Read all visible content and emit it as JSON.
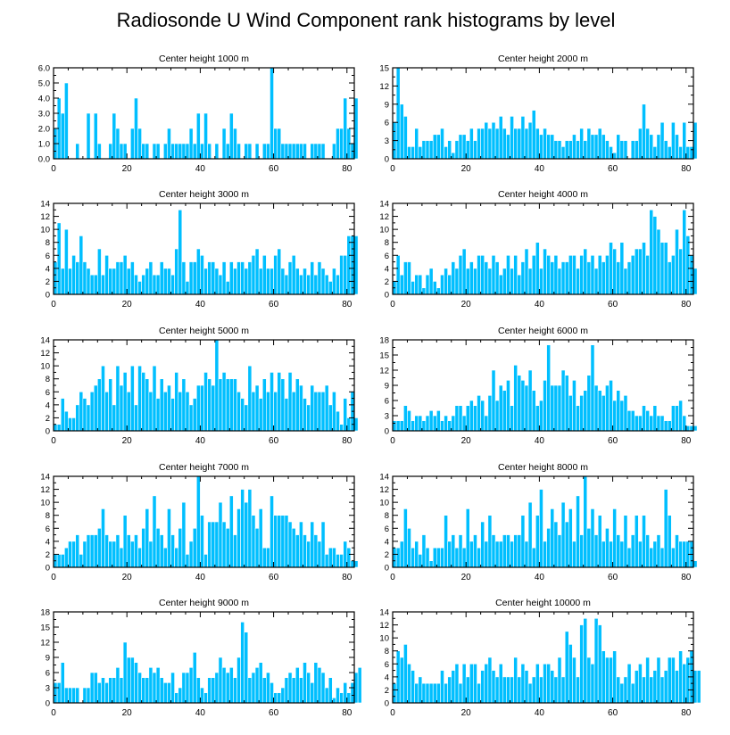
{
  "title": "Radiosonde U Wind Component rank histograms by level",
  "colors": {
    "bar": "#00bfff",
    "bar_edge": "#ffffff",
    "axis": "#000000"
  },
  "chart_data": [
    {
      "type": "bar",
      "title": "Center height 1000 m",
      "xlabel": "",
      "ylabel": "",
      "xlim": [
        0,
        82
      ],
      "ylim": [
        0,
        6
      ],
      "xticks": [
        0,
        20,
        40,
        60,
        80
      ],
      "yticks": [
        0,
        1,
        2,
        3,
        4,
        5,
        6
      ],
      "ytick_labels": [
        "0.0",
        "1.0",
        "2.0",
        "3.0",
        "4.0",
        "5.0",
        "6.0"
      ],
      "values": [
        2,
        4,
        3,
        5,
        0,
        0,
        1,
        0,
        0,
        3,
        0,
        3,
        1,
        0,
        0,
        1,
        3,
        2,
        1,
        1,
        0,
        2,
        4,
        2,
        1,
        1,
        0,
        1,
        1,
        0,
        1,
        2,
        1,
        1,
        1,
        1,
        1,
        2,
        1,
        3,
        1,
        3,
        1,
        0,
        1,
        0,
        2,
        1,
        3,
        2,
        1,
        0,
        1,
        1,
        0,
        1,
        0,
        1,
        1,
        6,
        2,
        2,
        1,
        1,
        1,
        1,
        1,
        1,
        1,
        0,
        1,
        1,
        1,
        1,
        0,
        0,
        1,
        2,
        2,
        4,
        2,
        1,
        4
      ]
    },
    {
      "type": "bar",
      "title": "Center height 2000 m",
      "xlabel": "",
      "ylabel": "",
      "xlim": [
        0,
        82
      ],
      "ylim": [
        0,
        15
      ],
      "xticks": [
        0,
        20,
        40,
        60,
        80
      ],
      "yticks": [
        0,
        3,
        6,
        9,
        12,
        15
      ],
      "ytick_labels": [
        "0",
        "3",
        "6",
        "9",
        "12",
        "15"
      ],
      "values": [
        6,
        15,
        9,
        7,
        2,
        2,
        5,
        2,
        3,
        3,
        3,
        4,
        4,
        5,
        2,
        3,
        1,
        3,
        4,
        4,
        3,
        5,
        3,
        5,
        5,
        6,
        5,
        6,
        5,
        7,
        5,
        4,
        7,
        5,
        5,
        7,
        5,
        6,
        8,
        5,
        4,
        5,
        4,
        4,
        3,
        3,
        2,
        3,
        3,
        4,
        3,
        5,
        3,
        5,
        4,
        4,
        5,
        4,
        3,
        2,
        1,
        4,
        3,
        3,
        0,
        3,
        3,
        5,
        9,
        5,
        4,
        2,
        4,
        6,
        3,
        2,
        6,
        4,
        2,
        6,
        2,
        2,
        6
      ]
    },
    {
      "type": "bar",
      "title": "Center height 3000 m",
      "xlabel": "",
      "ylabel": "",
      "xlim": [
        0,
        82
      ],
      "ylim": [
        0,
        14
      ],
      "xticks": [
        0,
        20,
        40,
        60,
        80
      ],
      "yticks": [
        0,
        2,
        4,
        6,
        8,
        10,
        12,
        14
      ],
      "ytick_labels": [
        "0",
        "2",
        "4",
        "6",
        "8",
        "10",
        "12",
        "14"
      ],
      "values": [
        5,
        11,
        4,
        10,
        4,
        6,
        5,
        9,
        5,
        4,
        3,
        3,
        7,
        3,
        6,
        4,
        4,
        5,
        5,
        6,
        4,
        5,
        3,
        2,
        3,
        4,
        5,
        3,
        3,
        5,
        4,
        4,
        3,
        7,
        13,
        5,
        2,
        5,
        5,
        7,
        6,
        4,
        5,
        5,
        4,
        3,
        5,
        2,
        5,
        4,
        5,
        5,
        4,
        5,
        6,
        7,
        4,
        6,
        4,
        4,
        6,
        7,
        4,
        3,
        5,
        6,
        4,
        3,
        4,
        3,
        5,
        3,
        5,
        4,
        3,
        2,
        4,
        3,
        6,
        6,
        9,
        9,
        9
      ]
    },
    {
      "type": "bar",
      "title": "Center height 4000 m",
      "xlabel": "",
      "ylabel": "",
      "xlim": [
        0,
        82
      ],
      "ylim": [
        0,
        14
      ],
      "xticks": [
        0,
        20,
        40,
        60,
        80
      ],
      "yticks": [
        0,
        2,
        4,
        6,
        8,
        10,
        12,
        14
      ],
      "ytick_labels": [
        "0",
        "2",
        "4",
        "6",
        "8",
        "10",
        "12",
        "14"
      ],
      "values": [
        2,
        6,
        3,
        5,
        5,
        2,
        3,
        3,
        1,
        3,
        4,
        2,
        1,
        3,
        4,
        3,
        5,
        4,
        6,
        7,
        4,
        5,
        4,
        6,
        6,
        5,
        4,
        6,
        5,
        3,
        4,
        6,
        4,
        6,
        3,
        5,
        7,
        4,
        6,
        8,
        4,
        7,
        6,
        5,
        6,
        4,
        5,
        5,
        6,
        6,
        4,
        6,
        7,
        5,
        6,
        4,
        6,
        5,
        6,
        8,
        7,
        5,
        8,
        4,
        5,
        6,
        7,
        7,
        8,
        6,
        13,
        12,
        10,
        8,
        8,
        5,
        6,
        10,
        7,
        13,
        9,
        6,
        4
      ]
    },
    {
      "type": "bar",
      "title": "Center height 5000 m",
      "xlabel": "",
      "ylabel": "",
      "xlim": [
        0,
        82
      ],
      "ylim": [
        0,
        14
      ],
      "xticks": [
        0,
        20,
        40,
        60,
        80
      ],
      "yticks": [
        0,
        2,
        4,
        6,
        8,
        10,
        12,
        14
      ],
      "ytick_labels": [
        "0",
        "2",
        "4",
        "6",
        "8",
        "10",
        "12",
        "14"
      ],
      "values": [
        1,
        1,
        5,
        3,
        2,
        2,
        4,
        6,
        5,
        4,
        6,
        7,
        8,
        10,
        6,
        8,
        4,
        10,
        7,
        9,
        6,
        10,
        4,
        10,
        9,
        8,
        6,
        10,
        5,
        8,
        6,
        7,
        5,
        9,
        6,
        8,
        6,
        4,
        5,
        7,
        7,
        9,
        8,
        7,
        14,
        8,
        9,
        8,
        8,
        8,
        6,
        5,
        4,
        10,
        6,
        7,
        5,
        8,
        6,
        9,
        6,
        9,
        8,
        5,
        9,
        6,
        8,
        7,
        5,
        4,
        7,
        6,
        6,
        6,
        7,
        4,
        6,
        3,
        1,
        5,
        2,
        6,
        2
      ]
    },
    {
      "type": "bar",
      "title": "Center height 6000 m",
      "xlabel": "",
      "ylabel": "",
      "xlim": [
        0,
        82
      ],
      "ylim": [
        0,
        18
      ],
      "xticks": [
        0,
        20,
        40,
        60,
        80
      ],
      "yticks": [
        0,
        3,
        6,
        9,
        12,
        15,
        18
      ],
      "ytick_labels": [
        "0",
        "3",
        "6",
        "9",
        "12",
        "15",
        "18"
      ],
      "values": [
        2,
        2,
        2,
        5,
        4,
        2,
        3,
        3,
        2,
        3,
        4,
        3,
        4,
        2,
        3,
        2,
        3,
        5,
        5,
        3,
        5,
        6,
        5,
        7,
        6,
        3,
        7,
        12,
        6,
        9,
        8,
        10,
        5,
        13,
        11,
        10,
        9,
        12,
        8,
        5,
        6,
        10,
        17,
        9,
        9,
        9,
        12,
        11,
        7,
        10,
        5,
        7,
        8,
        11,
        17,
        9,
        8,
        7,
        9,
        10,
        6,
        8,
        6,
        7,
        4,
        4,
        3,
        3,
        5,
        4,
        3,
        5,
        3,
        3,
        2,
        2,
        5,
        5,
        6,
        3,
        1,
        1,
        1
      ]
    },
    {
      "type": "bar",
      "title": "Center height 7000 m",
      "xlabel": "",
      "ylabel": "",
      "xlim": [
        0,
        82
      ],
      "ylim": [
        0,
        14
      ],
      "xticks": [
        0,
        20,
        40,
        60,
        80
      ],
      "yticks": [
        0,
        2,
        4,
        6,
        8,
        10,
        12,
        14
      ],
      "ytick_labels": [
        "0",
        "2",
        "4",
        "6",
        "8",
        "10",
        "12",
        "14"
      ],
      "values": [
        2,
        2,
        2,
        3,
        4,
        4,
        5,
        2,
        4,
        5,
        5,
        5,
        6,
        9,
        5,
        4,
        4,
        5,
        3,
        8,
        5,
        4,
        5,
        3,
        6,
        9,
        4,
        11,
        6,
        5,
        3,
        9,
        5,
        3,
        6,
        10,
        2,
        4,
        6,
        14,
        8,
        2,
        7,
        7,
        7,
        10,
        7,
        6,
        11,
        5,
        9,
        12,
        10,
        12,
        8,
        6,
        9,
        3,
        3,
        11,
        8,
        8,
        8,
        8,
        7,
        6,
        5,
        7,
        5,
        4,
        7,
        5,
        4,
        7,
        2,
        3,
        3,
        2,
        2,
        4,
        3,
        1,
        1
      ]
    },
    {
      "type": "bar",
      "title": "Center height 8000 m",
      "xlabel": "",
      "ylabel": "",
      "xlim": [
        0,
        82
      ],
      "ylim": [
        0,
        14
      ],
      "xticks": [
        0,
        20,
        40,
        60,
        80
      ],
      "yticks": [
        0,
        2,
        4,
        6,
        8,
        10,
        12,
        14
      ],
      "ytick_labels": [
        "0",
        "2",
        "4",
        "6",
        "8",
        "10",
        "12",
        "14"
      ],
      "values": [
        3,
        3,
        4,
        9,
        6,
        3,
        4,
        2,
        5,
        3,
        1,
        3,
        3,
        3,
        8,
        4,
        5,
        3,
        5,
        3,
        9,
        4,
        5,
        3,
        7,
        4,
        8,
        5,
        4,
        4,
        5,
        5,
        4,
        5,
        5,
        8,
        4,
        10,
        3,
        8,
        12,
        4,
        6,
        9,
        7,
        5,
        10,
        7,
        9,
        4,
        11,
        5,
        14,
        6,
        9,
        5,
        8,
        4,
        6,
        4,
        9,
        5,
        4,
        8,
        3,
        5,
        8,
        4,
        8,
        5,
        3,
        4,
        5,
        3,
        12,
        8,
        3,
        5,
        4,
        4,
        4,
        4,
        1
      ]
    },
    {
      "type": "bar",
      "title": "Center height 9000 m",
      "xlabel": "",
      "ylabel": "",
      "xlim": [
        0,
        82
      ],
      "ylim": [
        0,
        18
      ],
      "xticks": [
        0,
        20,
        40,
        60,
        80
      ],
      "yticks": [
        0,
        3,
        6,
        9,
        12,
        15,
        18
      ],
      "ytick_labels": [
        "0",
        "3",
        "6",
        "9",
        "12",
        "15",
        "18"
      ],
      "values": [
        4,
        4,
        8,
        3,
        3,
        3,
        3,
        0,
        3,
        3,
        6,
        6,
        4,
        5,
        4,
        5,
        5,
        7,
        5,
        12,
        9,
        9,
        8,
        6,
        5,
        5,
        7,
        6,
        7,
        5,
        4,
        4,
        6,
        2,
        3,
        6,
        6,
        7,
        10,
        5,
        3,
        2,
        5,
        5,
        6,
        9,
        7,
        6,
        7,
        5,
        9,
        16,
        14,
        5,
        6,
        7,
        8,
        5,
        6,
        4,
        2,
        2,
        3,
        5,
        6,
        5,
        7,
        5,
        8,
        6,
        4,
        8,
        7,
        6,
        3,
        5,
        1,
        3,
        2,
        4,
        2,
        4,
        6,
        7
      ]
    },
    {
      "type": "bar",
      "title": "Center height 10000 m",
      "xlabel": "",
      "ylabel": "",
      "xlim": [
        0,
        82
      ],
      "ylim": [
        0,
        14
      ],
      "xticks": [
        0,
        20,
        40,
        60,
        80
      ],
      "yticks": [
        0,
        2,
        4,
        6,
        8,
        10,
        12,
        14
      ],
      "ytick_labels": [
        "0",
        "2",
        "4",
        "6",
        "8",
        "10",
        "12",
        "14"
      ],
      "values": [
        3,
        8,
        7,
        9,
        6,
        5,
        3,
        4,
        3,
        3,
        3,
        3,
        3,
        5,
        3,
        4,
        5,
        6,
        3,
        6,
        4,
        6,
        6,
        3,
        5,
        6,
        7,
        5,
        4,
        6,
        4,
        4,
        4,
        7,
        4,
        6,
        5,
        3,
        4,
        6,
        4,
        6,
        6,
        5,
        4,
        7,
        4,
        11,
        9,
        7,
        4,
        12,
        13,
        7,
        6,
        13,
        12,
        8,
        7,
        7,
        8,
        4,
        3,
        4,
        6,
        3,
        5,
        6,
        4,
        7,
        4,
        5,
        7,
        4,
        5,
        7,
        7,
        5,
        8,
        6,
        7,
        8,
        5,
        5
      ]
    }
  ]
}
